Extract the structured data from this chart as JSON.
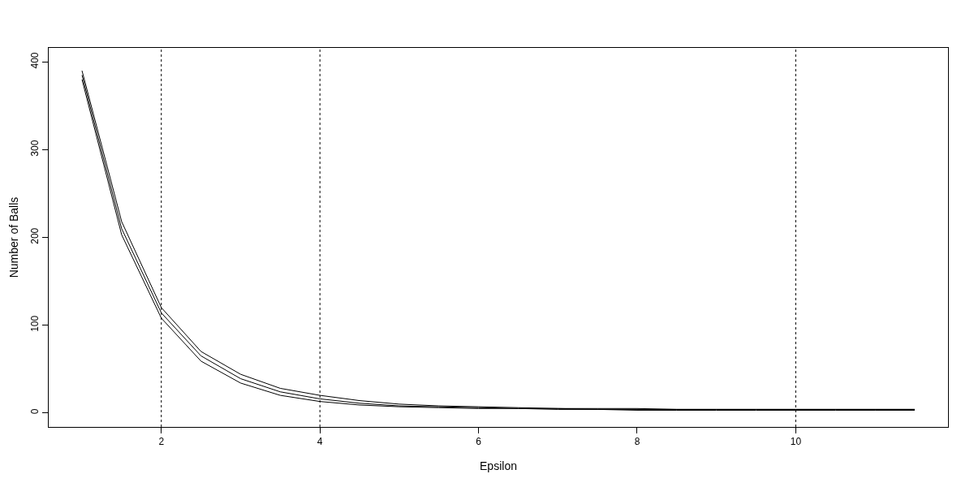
{
  "chart_data": {
    "type": "line",
    "xlabel": "Epsilon",
    "ylabel": "Number of Balls",
    "x": [
      1,
      1.5,
      2,
      2.5,
      3,
      3.5,
      4,
      4.5,
      5,
      5.5,
      6,
      6.5,
      7,
      7.5,
      8,
      8.5,
      9,
      9.5,
      10,
      10.5,
      11,
      11.5
    ],
    "series": [
      {
        "color": "#000000",
        "values": [
          390,
          218,
          120,
          70,
          44,
          28,
          20,
          14,
          10,
          8,
          7,
          6,
          5,
          5,
          5,
          4,
          4,
          4,
          4,
          4,
          4,
          4
        ]
      },
      {
        "color": "#000000",
        "values": [
          385,
          210,
          114,
          65,
          39,
          24,
          16,
          11,
          8,
          7,
          6,
          5,
          5,
          4,
          4,
          4,
          4,
          4,
          4,
          4,
          4,
          4
        ]
      },
      {
        "color": "#000000",
        "values": [
          380,
          203,
          108,
          59,
          34,
          20,
          13,
          9,
          7,
          6,
          5,
          5,
          4,
          4,
          3,
          3,
          3,
          3,
          3,
          3,
          3,
          3
        ]
      }
    ],
    "xlim": [
      0.58,
      11.92
    ],
    "xticks": [
      2,
      4,
      6,
      8,
      10
    ],
    "ylim": [
      -16,
      416
    ],
    "yticks": [
      0,
      100,
      200,
      300,
      400
    ],
    "ref_lines": [
      {
        "axis": "x",
        "value": 2,
        "color": "#000000",
        "line_style": "dotted"
      },
      {
        "axis": "x",
        "value": 4,
        "color": "#000000",
        "line_style": "dotted"
      },
      {
        "axis": "x",
        "value": 10,
        "color": "#000000",
        "line_style": "dotted"
      }
    ],
    "grid": false,
    "marker": "none",
    "line_style": "solid"
  }
}
